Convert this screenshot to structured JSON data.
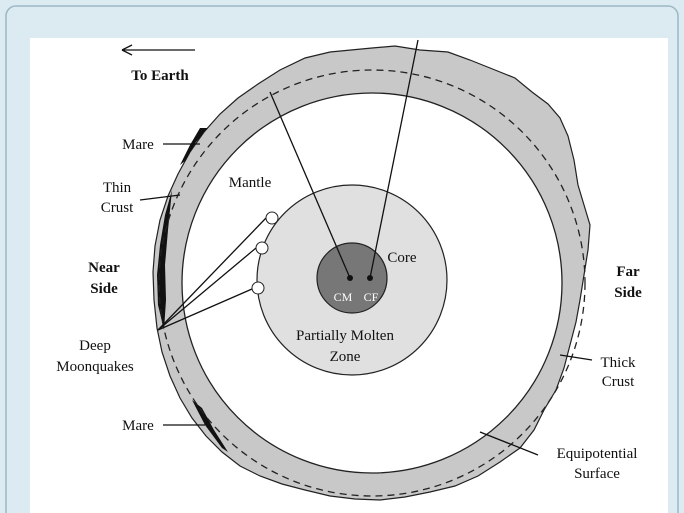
{
  "direction": "To Earth",
  "labels": {
    "mare_top": "Mare",
    "thin_crust": [
      "Thin",
      "Crust"
    ],
    "near_side": [
      "Near",
      "Side"
    ],
    "mantle": "Mantle",
    "core": "Core",
    "cm": "CM",
    "cf": "CF",
    "molten": [
      "Partially Molten",
      "Zone"
    ],
    "moonquakes": [
      "Deep",
      "Moonquakes"
    ],
    "mare_bottom": "Mare",
    "far_side": [
      "Far",
      "Side"
    ],
    "thick_crust": [
      "Thick",
      "Crust"
    ],
    "equipotential": [
      "Equipotential",
      "Surface"
    ]
  }
}
